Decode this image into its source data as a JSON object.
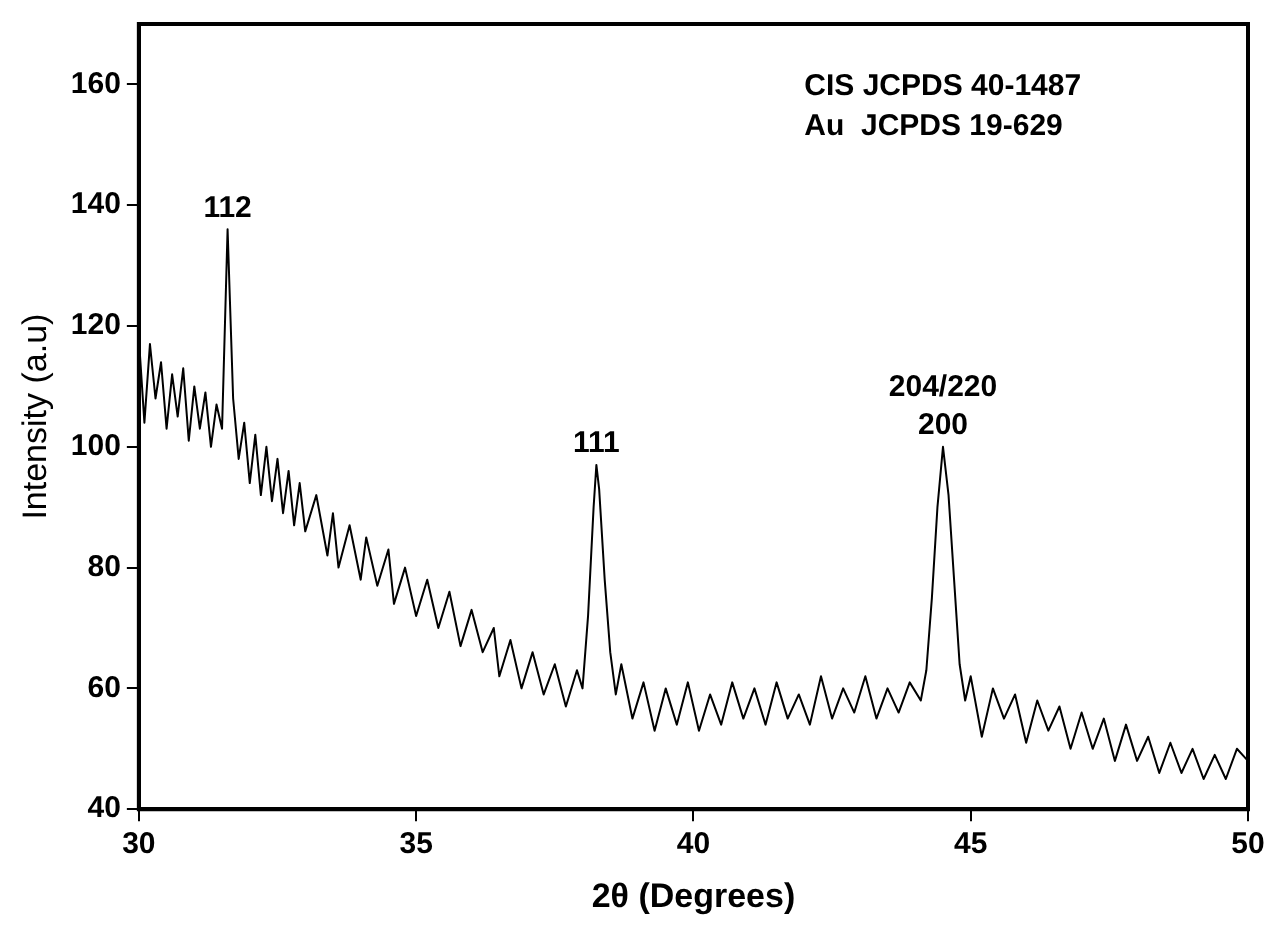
{
  "chart_data": {
    "type": "line",
    "xlabel": "2θ (Degrees)",
    "ylabel": "Intensity (a.u)",
    "xlim": [
      30,
      50
    ],
    "xticks": [
      30,
      35,
      40,
      45,
      50
    ],
    "ylim": [
      40,
      170
    ],
    "yticks": [
      40,
      60,
      80,
      100,
      120,
      140,
      160
    ],
    "grid": false,
    "legend": false,
    "marker": "none",
    "line_style": "solid",
    "series": [
      {
        "color": "#000000",
        "x": [
          30.0,
          30.1,
          30.2,
          30.3,
          30.4,
          30.5,
          30.6,
          30.7,
          30.8,
          30.9,
          31.0,
          31.1,
          31.2,
          31.3,
          31.4,
          31.5,
          31.6,
          31.7,
          31.8,
          31.9,
          32.0,
          32.1,
          32.2,
          32.3,
          32.4,
          32.5,
          32.6,
          32.7,
          32.8,
          32.9,
          33.0,
          33.2,
          33.4,
          33.5,
          33.6,
          33.8,
          34.0,
          34.1,
          34.3,
          34.5,
          34.6,
          34.8,
          35.0,
          35.2,
          35.4,
          35.6,
          35.8,
          36.0,
          36.2,
          36.4,
          36.5,
          36.7,
          36.9,
          37.1,
          37.3,
          37.5,
          37.7,
          37.9,
          38.0,
          38.1,
          38.2,
          38.25,
          38.3,
          38.4,
          38.5,
          38.6,
          38.7,
          38.9,
          39.1,
          39.3,
          39.5,
          39.7,
          39.9,
          40.1,
          40.3,
          40.5,
          40.7,
          40.9,
          41.1,
          41.3,
          41.5,
          41.7,
          41.9,
          42.1,
          42.3,
          42.5,
          42.7,
          42.9,
          43.1,
          43.3,
          43.5,
          43.7,
          43.9,
          44.1,
          44.2,
          44.3,
          44.4,
          44.5,
          44.6,
          44.7,
          44.8,
          44.9,
          45.0,
          45.2,
          45.4,
          45.6,
          45.8,
          46.0,
          46.2,
          46.4,
          46.6,
          46.8,
          47.0,
          47.2,
          47.4,
          47.6,
          47.8,
          48.0,
          48.2,
          48.4,
          48.6,
          48.8,
          49.0,
          49.2,
          49.4,
          49.6,
          49.8,
          50.0
        ],
        "values": [
          118,
          104,
          117,
          108,
          114,
          103,
          112,
          105,
          113,
          101,
          110,
          103,
          109,
          100,
          107,
          103,
          136,
          108,
          98,
          104,
          94,
          102,
          92,
          100,
          91,
          98,
          89,
          96,
          87,
          94,
          86,
          92,
          82,
          89,
          80,
          87,
          78,
          85,
          77,
          83,
          74,
          80,
          72,
          78,
          70,
          76,
          67,
          73,
          66,
          70,
          62,
          68,
          60,
          66,
          59,
          64,
          57,
          63,
          60,
          72,
          90,
          97,
          93,
          78,
          66,
          59,
          64,
          55,
          61,
          53,
          60,
          54,
          61,
          53,
          59,
          54,
          61,
          55,
          60,
          54,
          61,
          55,
          59,
          54,
          62,
          55,
          60,
          56,
          62,
          55,
          60,
          56,
          61,
          58,
          63,
          75,
          90,
          100,
          92,
          78,
          64,
          58,
          62,
          52,
          60,
          55,
          59,
          51,
          58,
          53,
          57,
          50,
          56,
          50,
          55,
          48,
          54,
          48,
          52,
          46,
          51,
          46,
          50,
          45,
          49,
          45,
          50,
          48
        ]
      }
    ],
    "annotations": [
      {
        "text": "112",
        "x": 31.6,
        "y": 136
      },
      {
        "text": "111",
        "x": 38.25,
        "y": 97
      },
      {
        "text": "204/220",
        "x": 44.5,
        "y": 100
      },
      {
        "text": "200",
        "x": 44.5,
        "y": 100
      },
      "CIS JCPDS 40-1487",
      "Au  JCPDS 19-629"
    ]
  }
}
